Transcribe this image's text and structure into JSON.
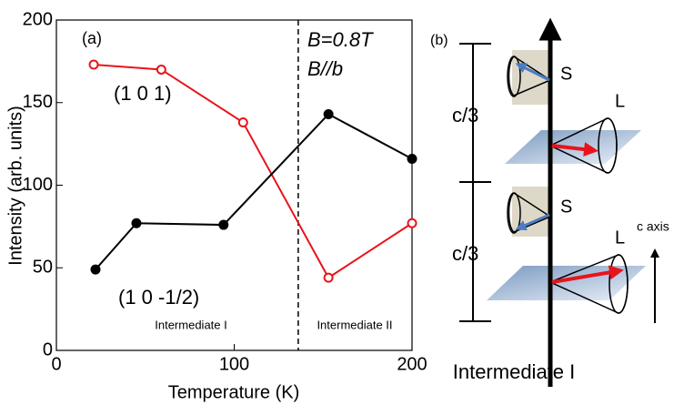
{
  "chart_data": {
    "type": "line",
    "xlabel": "Temperature (K)",
    "ylabel": "Intensity (arb. units)",
    "xlim": [
      0,
      200
    ],
    "ylim": [
      0,
      200
    ],
    "xticks": [
      0,
      100,
      200
    ],
    "yticks": [
      0,
      50,
      100,
      150,
      200
    ],
    "series": [
      {
        "name": "(1 0 1)",
        "color": "#e8141b",
        "marker": "open",
        "x": [
          21,
          59,
          105,
          153,
          200
        ],
        "values": [
          173,
          170,
          138,
          44,
          77
        ]
      },
      {
        "name": "(1 0 -1/2)",
        "color": "#000000",
        "marker": "filled",
        "x": [
          22,
          45,
          94,
          153,
          200
        ],
        "values": [
          49,
          77,
          76,
          143,
          116
        ]
      }
    ],
    "vlines": [
      136
    ],
    "annotations": [
      "(a)",
      "B=0.8T",
      "B//b",
      "Intermediate I",
      "Intermediate II"
    ]
  },
  "diagram": {
    "label": "(b)",
    "spacing": [
      "c/3",
      "c/3"
    ],
    "moments": [
      "S",
      "L",
      "S",
      "L"
    ],
    "axis": "c axis",
    "caption": "Intermediate I"
  }
}
